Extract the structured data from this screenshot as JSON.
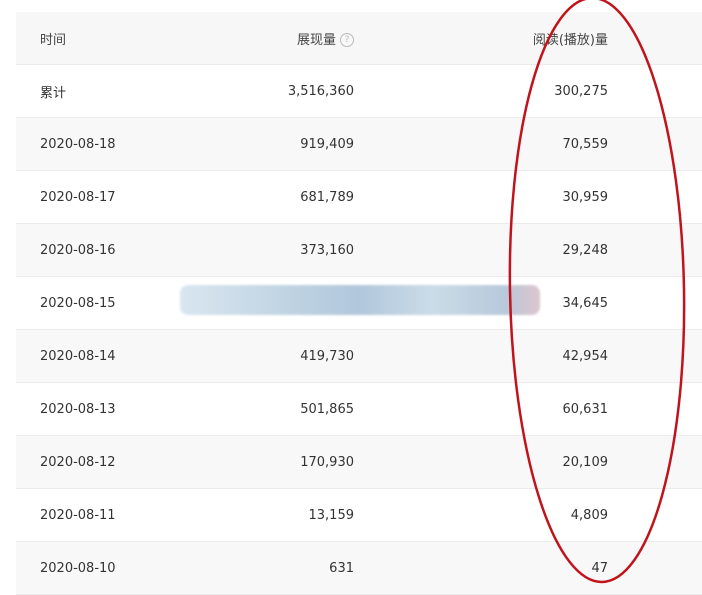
{
  "header": {
    "date": "时间",
    "impressions": "展现量",
    "help": "?",
    "reads": "阅读(播放)量"
  },
  "rows": [
    {
      "date": "累计",
      "impressions": "3,516,360",
      "reads": "300,275"
    },
    {
      "date": "2020-08-18",
      "impressions": "919,409",
      "reads": "70,559"
    },
    {
      "date": "2020-08-17",
      "impressions": "681,789",
      "reads": "30,959"
    },
    {
      "date": "2020-08-16",
      "impressions": "373,160",
      "reads": "29,248"
    },
    {
      "date": "2020-08-15",
      "impressions": "",
      "reads": "34,645"
    },
    {
      "date": "2020-08-14",
      "impressions": "419,730",
      "reads": "42,954"
    },
    {
      "date": "2020-08-13",
      "impressions": "501,865",
      "reads": "60,631"
    },
    {
      "date": "2020-08-12",
      "impressions": "170,930",
      "reads": "20,109"
    },
    {
      "date": "2020-08-11",
      "impressions": "13,159",
      "reads": "4,809"
    },
    {
      "date": "2020-08-10",
      "impressions": "631",
      "reads": "47"
    }
  ],
  "annotation_color": "#c0141c"
}
